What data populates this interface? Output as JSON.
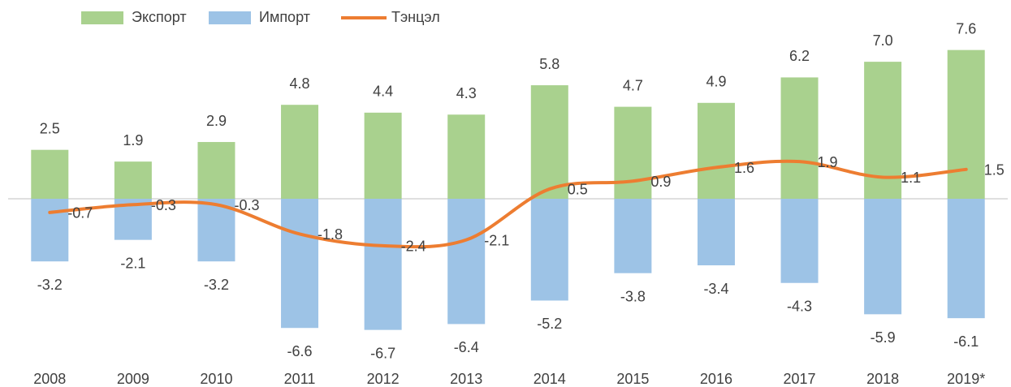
{
  "chart_data": {
    "type": "bar",
    "categories": [
      "2008",
      "2009",
      "2010",
      "2011",
      "2012",
      "2013",
      "2014",
      "2015",
      "2016",
      "2017",
      "2018",
      "2019*"
    ],
    "series": [
      {
        "name": "Экспорт",
        "color": "#a9d18e",
        "type": "bar",
        "values": [
          2.5,
          1.9,
          2.9,
          4.8,
          4.4,
          4.3,
          5.8,
          4.7,
          4.9,
          6.2,
          7.0,
          7.6
        ],
        "value_labels": [
          "2.5",
          "1.9",
          "2.9",
          "4.8",
          "4.4",
          "4.3",
          "5.8",
          "4.7",
          "4.9",
          "6.2",
          "7.0",
          "7.6"
        ]
      },
      {
        "name": "Импорт",
        "color": "#9dc3e6",
        "type": "bar",
        "values": [
          -3.2,
          -2.1,
          -3.2,
          -6.6,
          -6.7,
          -6.4,
          -5.2,
          -3.8,
          -3.4,
          -4.3,
          -5.9,
          -6.1
        ],
        "value_labels": [
          "-3.2",
          "-2.1",
          "-3.2",
          "-6.6",
          "-6.7",
          "-6.4",
          "-5.2",
          "-3.8",
          "-3.4",
          "-4.3",
          "-5.9",
          "-6.1"
        ]
      },
      {
        "name": "Тэнцэл",
        "color": "#ed7d31",
        "type": "line",
        "values": [
          -0.7,
          -0.3,
          -0.3,
          -1.8,
          -2.4,
          -2.1,
          0.5,
          0.9,
          1.6,
          1.9,
          1.1,
          1.5
        ],
        "value_labels": [
          "-0.7",
          "-0.3",
          "-0.3",
          "-1.8",
          "-2.4",
          "-2.1",
          "0.5",
          "0.9",
          "1.6",
          "1.9",
          "1.1",
          "1.5"
        ]
      }
    ],
    "ylim": [
      -8,
      8
    ],
    "legend": "top"
  }
}
